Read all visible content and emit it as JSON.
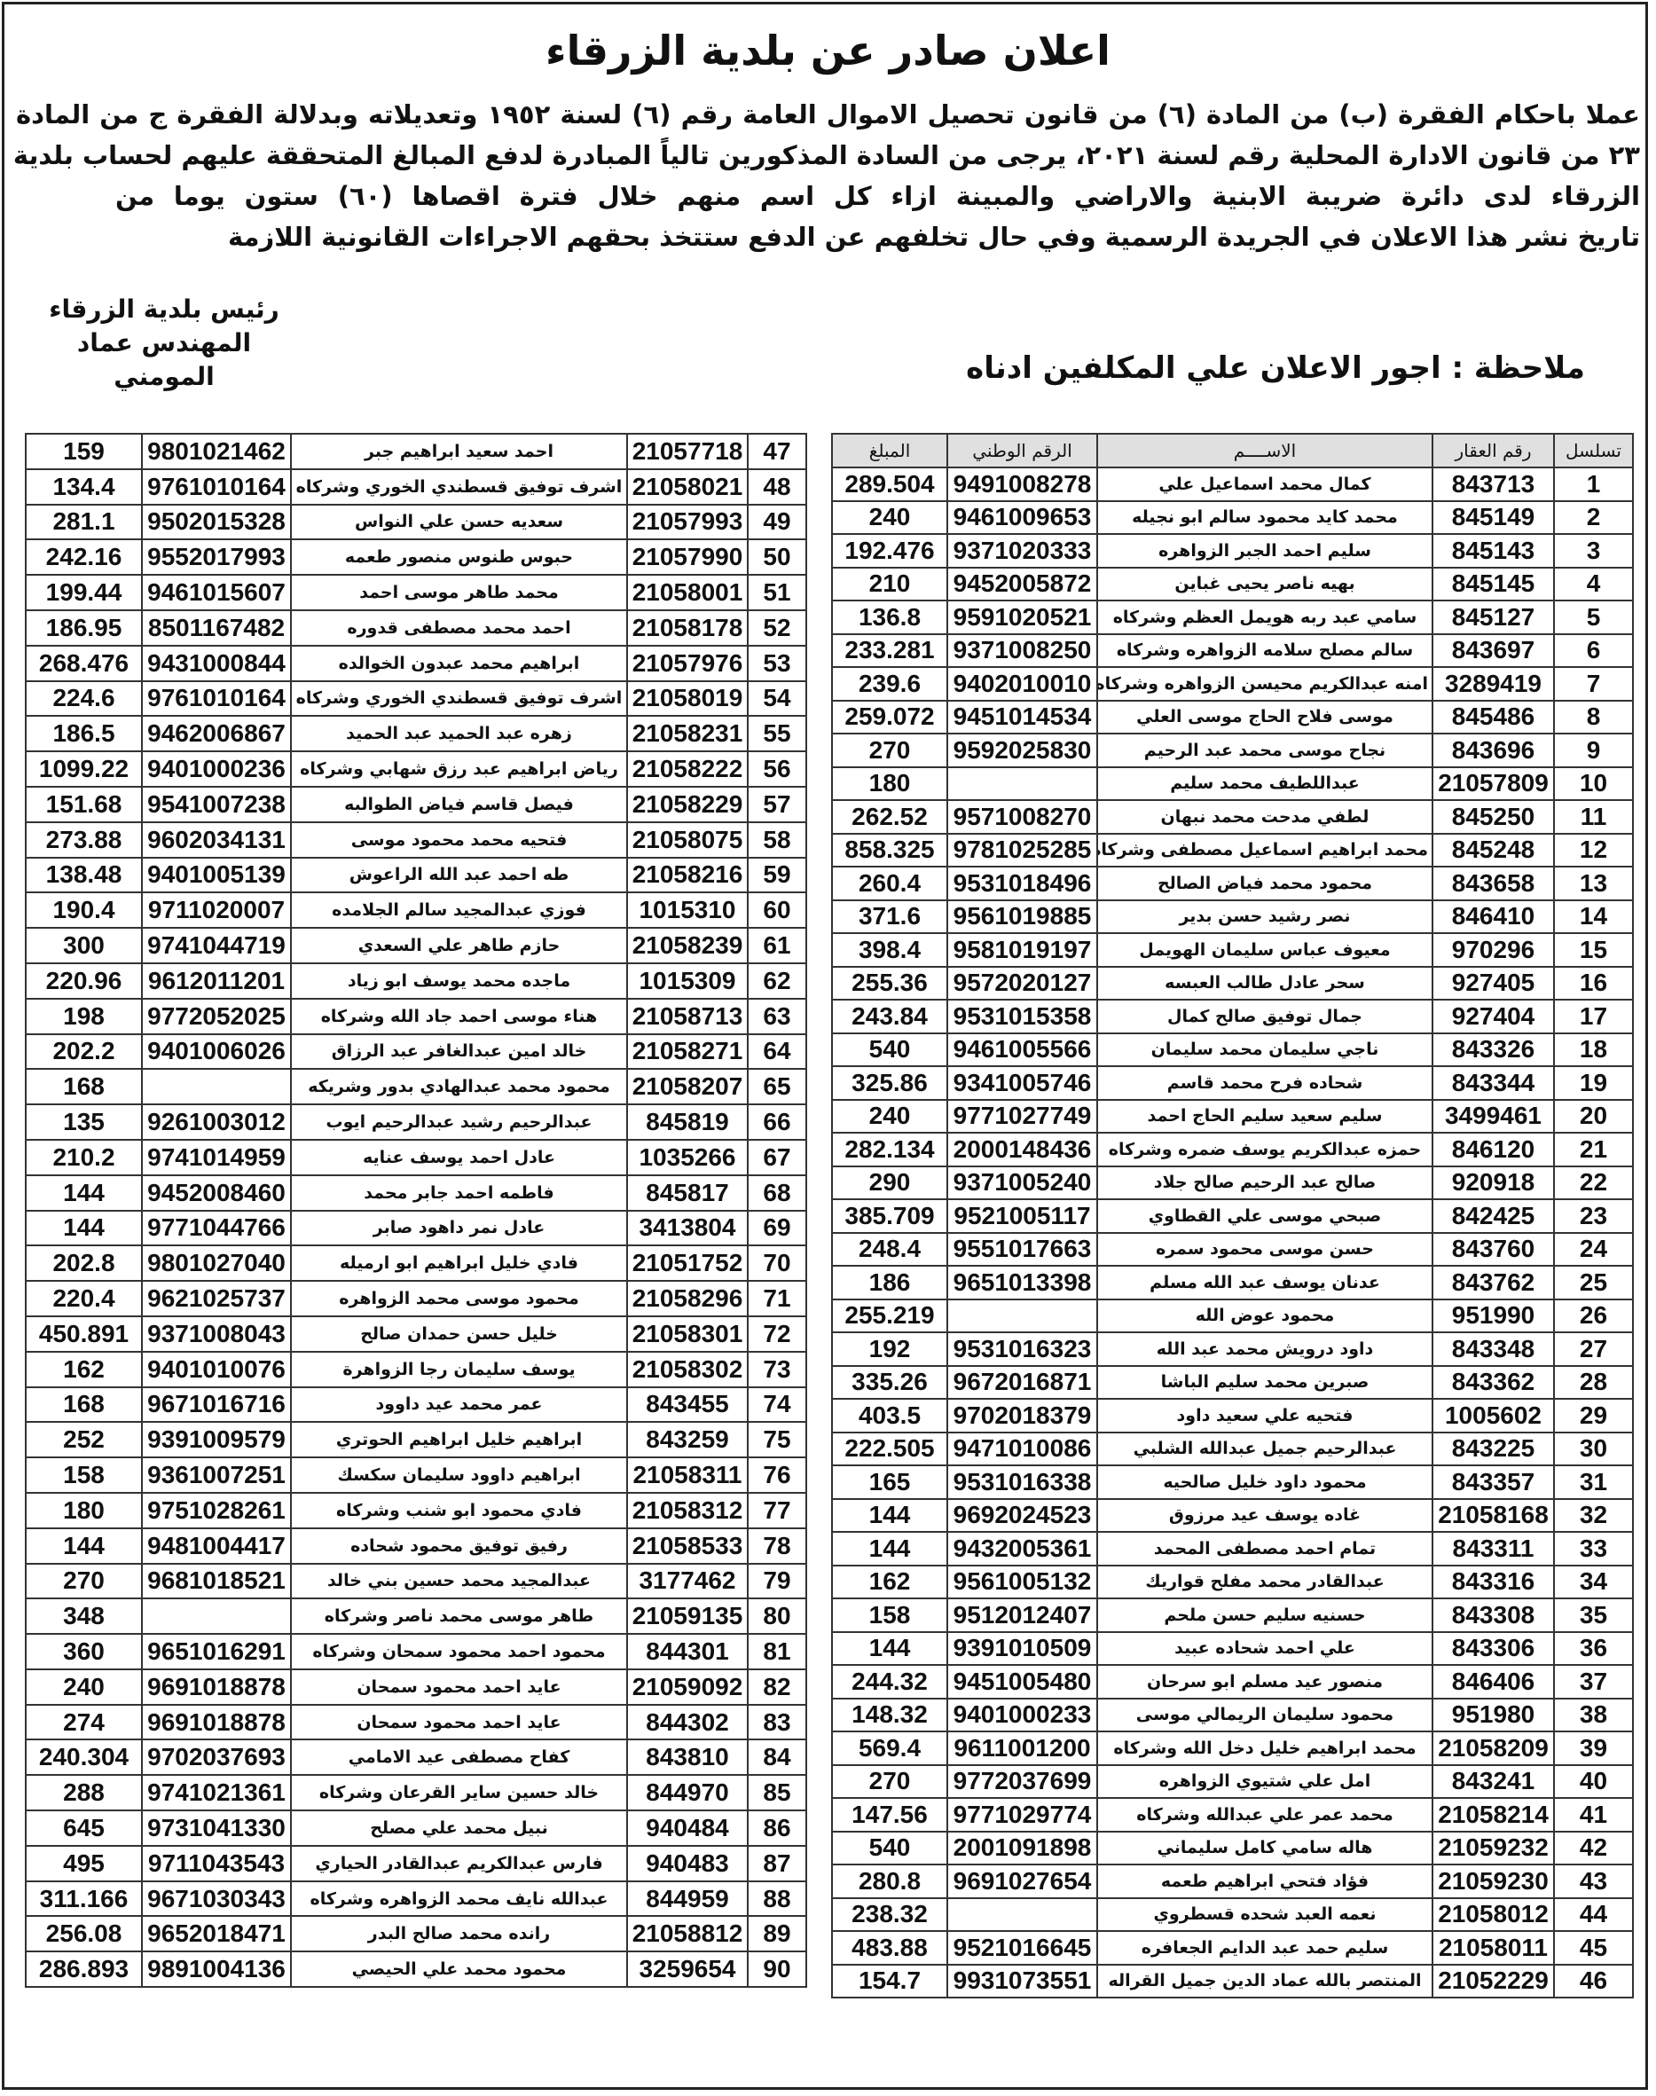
{
  "header": {
    "title": "اعلان صادر عن بلدية الزرقاء",
    "body_lines": [
      "عملا باحكام الفقرة (ب) من المادة (٦) من قانون تحصيل الاموال العامة رقم (٦) لسنة ١٩٥٢ وتعديلاته وبدلالة الفقرة ج من المادة",
      "٢٣ من قانون الادارة المحلية رقم لسنة ٢٠٢١، يرجى من السادة المذكورين تالياً المبادرة لدفع المبالغ المتحققة عليهم لحساب بلدية",
      "الزرقاء لدى دائرة ضريبة الابنية والاراضي والمبينة ازاء كل اسم منهم خلال فترة اقصاها (٦٠) ستون يوما من",
      "تاريخ نشر هذا الاعلان في الجريدة الرسمية وفي حال تخلفهم عن الدفع ستتخذ بحقهم الاجراءات القانونية اللازمة"
    ],
    "signature_title": "رئيس بلدية الزرقاء",
    "signature_name": "المهندس عماد المومني",
    "note": "ملاحظة : اجور الاعلان علي المكلفين ادناه"
  },
  "table": {
    "columns": [
      "تسلسل",
      "رقم العقار",
      "الاســــم",
      "الرقم الوطني",
      "المبلغ"
    ],
    "rows_right": [
      [
        "1",
        "843713",
        "كمال محمد اسماعيل علي",
        "9491008278",
        "289.504"
      ],
      [
        "2",
        "845149",
        "محمد كايد محمود سالم ابو نجيله",
        "9461009653",
        "240"
      ],
      [
        "3",
        "845143",
        "سليم احمد الجبر الزواهره",
        "9371020333",
        "192.476"
      ],
      [
        "4",
        "845145",
        "بهيه ناصر يحيى غباين",
        "9452005872",
        "210"
      ],
      [
        "5",
        "845127",
        "سامي عبد ربه هويمل العظم وشركاه",
        "9591020521",
        "136.8"
      ],
      [
        "6",
        "843697",
        "سالم مصلح سلامه الزواهره وشركاه",
        "9371008250",
        "233.281"
      ],
      [
        "7",
        "3289419",
        "امنه عبدالكريم محيسن الزواهره وشركاه",
        "9402010010",
        "239.6"
      ],
      [
        "8",
        "845486",
        "موسى فلاح الحاج موسى العلي",
        "9451014534",
        "259.072"
      ],
      [
        "9",
        "843696",
        "نجاح موسى محمد عبد الرحيم",
        "9592025830",
        "270"
      ],
      [
        "10",
        "21057809",
        "عبداللطيف محمد سليم",
        "",
        "180"
      ],
      [
        "11",
        "845250",
        "لطفي مدحت محمد نبهان",
        "9571008270",
        "262.52"
      ],
      [
        "12",
        "845248",
        "محمد ابراهيم اسماعيل مصطفى وشركاه",
        "9781025285",
        "858.325"
      ],
      [
        "13",
        "843658",
        "محمود محمد فياض الصالح",
        "9531018496",
        "260.4"
      ],
      [
        "14",
        "846410",
        "نصر رشيد حسن بدير",
        "9561019885",
        "371.6"
      ],
      [
        "15",
        "970296",
        "معيوف عباس سليمان الهويمل",
        "9581019197",
        "398.4"
      ],
      [
        "16",
        "927405",
        "سحر عادل طالب العبسه",
        "9572020127",
        "255.36"
      ],
      [
        "17",
        "927404",
        "جمال توفيق صالح كمال",
        "9531015358",
        "243.84"
      ],
      [
        "18",
        "843326",
        "ناجي سليمان محمد سليمان",
        "9461005566",
        "540"
      ],
      [
        "19",
        "843344",
        "شحاده فرح محمد قاسم",
        "9341005746",
        "325.86"
      ],
      [
        "20",
        "3499461",
        "سليم سعيد سليم الحاج احمد",
        "9771027749",
        "240"
      ],
      [
        "21",
        "846120",
        "حمزه عبدالكريم يوسف ضمره وشركاه",
        "2000148436",
        "282.134"
      ],
      [
        "22",
        "920918",
        "صالح عبد الرحيم صالح جلاد",
        "9371005240",
        "290"
      ],
      [
        "23",
        "842425",
        "صبحي موسى علي القطاوي",
        "9521005117",
        "385.709"
      ],
      [
        "24",
        "843760",
        "حسن موسى محمود سمره",
        "9551017663",
        "248.4"
      ],
      [
        "25",
        "843762",
        "عدنان يوسف عبد الله مسلم",
        "9651013398",
        "186"
      ],
      [
        "26",
        "951990",
        "محمود عوض الله",
        "",
        "255.219"
      ],
      [
        "27",
        "843348",
        "داود درويش محمد عبد الله",
        "9531016323",
        "192"
      ],
      [
        "28",
        "843362",
        "صبرين محمد سليم الباشا",
        "9672016871",
        "335.26"
      ],
      [
        "29",
        "1005602",
        "فتحيه علي سعيد داود",
        "9702018379",
        "403.5"
      ],
      [
        "30",
        "843225",
        "عبدالرحيم جميل عبدالله الشلبي",
        "9471010086",
        "222.505"
      ],
      [
        "31",
        "843357",
        "محمود داود خليل صالحيه",
        "9531016338",
        "165"
      ],
      [
        "32",
        "21058168",
        "غاده يوسف عيد مرزوق",
        "9692024523",
        "144"
      ],
      [
        "33",
        "843311",
        "تمام احمد مصطفى المحمد",
        "9432005361",
        "144"
      ],
      [
        "34",
        "843316",
        "عبدالقادر محمد مفلح قواريك",
        "9561005132",
        "162"
      ],
      [
        "35",
        "843308",
        "حسنيه سليم حسن ملحم",
        "9512012407",
        "158"
      ],
      [
        "36",
        "843306",
        "علي احمد شحاده عبيد",
        "9391010509",
        "144"
      ],
      [
        "37",
        "846406",
        "منصور عيد مسلم ابو سرحان",
        "9451005480",
        "244.32"
      ],
      [
        "38",
        "951980",
        "محمود سليمان الريمالي موسى",
        "9401000233",
        "148.32"
      ],
      [
        "39",
        "21058209",
        "محمد ابراهيم خليل دخل الله وشركاه",
        "9611001200",
        "569.4"
      ],
      [
        "40",
        "843241",
        "امل علي شتيوي الزواهره",
        "9772037699",
        "270"
      ],
      [
        "41",
        "21058214",
        "محمد عمر علي عبدالله وشركاه",
        "9771029774",
        "147.56"
      ],
      [
        "42",
        "21059232",
        "هاله سامي كامل سليماني",
        "2001091898",
        "540"
      ],
      [
        "43",
        "21059230",
        "فؤاد فتحي ابراهيم طعمه",
        "9691027654",
        "280.8"
      ],
      [
        "44",
        "21058012",
        "نعمه العبد شحده قسطروي",
        "",
        "238.32"
      ],
      [
        "45",
        "21058011",
        "سليم حمد عبد الدايم الجعافره",
        "9521016645",
        "483.88"
      ],
      [
        "46",
        "21052229",
        "المنتصر بالله عماد الدين جميل القراله",
        "9931073551",
        "154.7"
      ]
    ],
    "rows_left": [
      [
        "47",
        "21057718",
        "احمد سعيد ابراهيم جبر",
        "9801021462",
        "159"
      ],
      [
        "48",
        "21058021",
        "اشرف توفيق قسطندي الخوري وشركاه",
        "9761010164",
        "134.4"
      ],
      [
        "49",
        "21057993",
        "سعديه حسن علي النواس",
        "9502015328",
        "281.1"
      ],
      [
        "50",
        "21057990",
        "حبوس طنوس منصور طعمه",
        "9552017993",
        "242.16"
      ],
      [
        "51",
        "21058001",
        "محمد طاهر موسى احمد",
        "9461015607",
        "199.44"
      ],
      [
        "52",
        "21058178",
        "احمد محمد مصطفى قدوره",
        "8501167482",
        "186.95"
      ],
      [
        "53",
        "21057976",
        "ابراهيم محمد عبدون الخوالده",
        "9431000844",
        "268.476"
      ],
      [
        "54",
        "21058019",
        "اشرف توفيق قسطندي الخوري وشركاه",
        "9761010164",
        "224.6"
      ],
      [
        "55",
        "21058231",
        "زهره عبد الحميد عبد الحميد",
        "9462006867",
        "186.5"
      ],
      [
        "56",
        "21058222",
        "رياض ابراهيم عبد رزق شهابي وشركاه",
        "9401000236",
        "1099.22"
      ],
      [
        "57",
        "21058229",
        "فيصل قاسم فياض الطوالبه",
        "9541007238",
        "151.68"
      ],
      [
        "58",
        "21058075",
        "فتحيه محمد محمود موسى",
        "9602034131",
        "273.88"
      ],
      [
        "59",
        "21058216",
        "طه احمد عبد الله الراعوش",
        "9401005139",
        "138.48"
      ],
      [
        "60",
        "1015310",
        "فوزي عبدالمجيد سالم الجلامده",
        "9711020007",
        "190.4"
      ],
      [
        "61",
        "21058239",
        "حازم طاهر علي السعدي",
        "9741044719",
        "300"
      ],
      [
        "62",
        "1015309",
        "ماجده محمد يوسف ابو زياد",
        "9612011201",
        "220.96"
      ],
      [
        "63",
        "21058713",
        "هناء موسى احمد جاد الله وشركاه",
        "9772052025",
        "198"
      ],
      [
        "64",
        "21058271",
        "خالد امين عبدالغافر عبد الرزاق",
        "9401006026",
        "202.2"
      ],
      [
        "65",
        "21058207",
        "محمود محمد عبدالهادي بدور وشريكه",
        "",
        "168"
      ],
      [
        "66",
        "845819",
        "عبدالرحيم رشيد عبدالرحيم ايوب",
        "9261003012",
        "135"
      ],
      [
        "67",
        "1035266",
        "عادل احمد يوسف عنايه",
        "9741014959",
        "210.2"
      ],
      [
        "68",
        "845817",
        "فاطمه احمد جابر محمد",
        "9452008460",
        "144"
      ],
      [
        "69",
        "3413804",
        "عادل نمر داهود صابر",
        "9771044766",
        "144"
      ],
      [
        "70",
        "21051752",
        "فادي خليل ابراهيم ابو ارميله",
        "9801027040",
        "202.8"
      ],
      [
        "71",
        "21058296",
        "محمود موسى محمد الزواهره",
        "9621025737",
        "220.4"
      ],
      [
        "72",
        "21058301",
        "خليل حسن حمدان صالح",
        "9371008043",
        "450.891"
      ],
      [
        "73",
        "21058302",
        "يوسف سليمان رجا الزواهرة",
        "9401010076",
        "162"
      ],
      [
        "74",
        "843455",
        "عمر محمد عيد داوود",
        "9671016716",
        "168"
      ],
      [
        "75",
        "843259",
        "ابراهيم خليل ابراهيم الحوتري",
        "9391009579",
        "252"
      ],
      [
        "76",
        "21058311",
        "ابراهيم داوود سليمان سكسك",
        "9361007251",
        "158"
      ],
      [
        "77",
        "21058312",
        "فادي محمود ابو شنب وشركاه",
        "9751028261",
        "180"
      ],
      [
        "78",
        "21058533",
        "رفيق توفيق محمود شحاده",
        "9481004417",
        "144"
      ],
      [
        "79",
        "3177462",
        "عبدالمجيد محمد حسين بني خالد",
        "9681018521",
        "270"
      ],
      [
        "80",
        "21059135",
        "طاهر موسى محمد ناصر وشركاه",
        "",
        "348"
      ],
      [
        "81",
        "844301",
        "محمود احمد محمود سمحان وشركاه",
        "9651016291",
        "360"
      ],
      [
        "82",
        "21059092",
        "عايد احمد محمود سمحان",
        "9691018878",
        "240"
      ],
      [
        "83",
        "844302",
        "عايد احمد محمود سمحان",
        "9691018878",
        "274"
      ],
      [
        "84",
        "843810",
        "كفاح مصطفى عيد الامامي",
        "9702037693",
        "240.304"
      ],
      [
        "85",
        "844970",
        "خالد حسين ساير القرعان وشركاه",
        "9741021361",
        "288"
      ],
      [
        "86",
        "940484",
        "نبيل محمد علي مصلح",
        "9731041330",
        "645"
      ],
      [
        "87",
        "940483",
        "فارس عبدالكريم عبدالقادر الحياري",
        "9711043543",
        "495"
      ],
      [
        "88",
        "844959",
        "عبدالله نايف محمد الزواهره وشركاه",
        "9671030343",
        "311.166"
      ],
      [
        "89",
        "21058812",
        "رانده محمد صالح البدر",
        "9652018471",
        "256.08"
      ],
      [
        "90",
        "3259654",
        "محمود محمد علي الحيصي",
        "9891004136",
        "286.893"
      ]
    ]
  }
}
